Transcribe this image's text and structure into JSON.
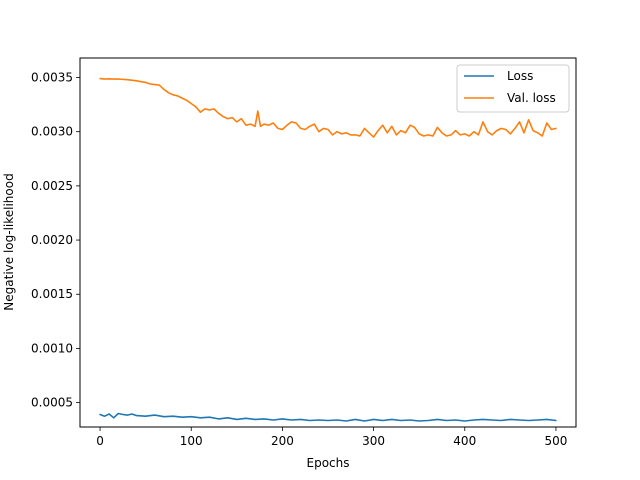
{
  "chart_data": {
    "type": "line",
    "xlabel": "Epochs",
    "ylabel": "Negative log-likelihood",
    "xlim": [
      -22,
      522
    ],
    "ylim": [
      0.000275,
      0.00368
    ],
    "xticks": [
      0,
      100,
      200,
      300,
      400,
      500
    ],
    "xtick_labels": [
      "0",
      "100",
      "200",
      "300",
      "400",
      "500"
    ],
    "yticks": [
      0.0005,
      0.001,
      0.0015,
      0.002,
      0.0025,
      0.003,
      0.0035
    ],
    "ytick_labels": [
      "0.0005",
      "0.0010",
      "0.0015",
      "0.0020",
      "0.0025",
      "0.0030",
      "0.0035"
    ],
    "grid": false,
    "legend_position": "top-right",
    "series": [
      {
        "name": "Loss",
        "color": "#1f77b4",
        "x": [
          0,
          5,
          10,
          15,
          20,
          25,
          30,
          35,
          40,
          50,
          60,
          70,
          80,
          90,
          100,
          110,
          120,
          130,
          140,
          150,
          160,
          170,
          180,
          190,
          200,
          210,
          220,
          230,
          240,
          250,
          260,
          270,
          280,
          290,
          300,
          310,
          320,
          330,
          340,
          350,
          360,
          370,
          380,
          390,
          400,
          410,
          420,
          430,
          440,
          450,
          460,
          470,
          480,
          490,
          500
        ],
        "values": [
          0.00039,
          0.000375,
          0.000395,
          0.00036,
          0.0004,
          0.00039,
          0.000385,
          0.000395,
          0.00038,
          0.000375,
          0.000385,
          0.00037,
          0.000375,
          0.000365,
          0.00037,
          0.00036,
          0.000365,
          0.00035,
          0.00036,
          0.000345,
          0.000355,
          0.000345,
          0.00035,
          0.00034,
          0.00035,
          0.00034,
          0.000345,
          0.000335,
          0.00034,
          0.000335,
          0.00034,
          0.00033,
          0.000345,
          0.00033,
          0.000345,
          0.000335,
          0.000345,
          0.000335,
          0.00034,
          0.00033,
          0.000335,
          0.000345,
          0.000335,
          0.00034,
          0.00033,
          0.00034,
          0.000345,
          0.00034,
          0.000335,
          0.000345,
          0.00034,
          0.000335,
          0.00034,
          0.000345,
          0.000335
        ]
      },
      {
        "name": "Val. loss",
        "color": "#ff7f0e",
        "x": [
          0,
          5,
          10,
          15,
          20,
          30,
          40,
          50,
          55,
          60,
          65,
          70,
          75,
          80,
          85,
          90,
          95,
          100,
          105,
          110,
          115,
          120,
          125,
          130,
          135,
          140,
          145,
          150,
          155,
          160,
          165,
          170,
          173,
          176,
          180,
          185,
          190,
          195,
          200,
          205,
          210,
          215,
          220,
          225,
          230,
          235,
          240,
          245,
          250,
          255,
          260,
          265,
          270,
          275,
          280,
          285,
          290,
          295,
          300,
          305,
          310,
          315,
          320,
          325,
          330,
          335,
          340,
          345,
          350,
          355,
          360,
          365,
          370,
          375,
          380,
          385,
          390,
          395,
          400,
          405,
          410,
          415,
          420,
          425,
          430,
          435,
          440,
          445,
          450,
          455,
          460,
          465,
          470,
          475,
          480,
          485,
          490,
          495,
          500
        ],
        "values": [
          0.00349,
          0.003485,
          0.003488,
          0.003485,
          0.003486,
          0.00348,
          0.00347,
          0.003455,
          0.00344,
          0.003435,
          0.00343,
          0.00339,
          0.00336,
          0.00334,
          0.00333,
          0.00331,
          0.00329,
          0.00326,
          0.00323,
          0.00318,
          0.00321,
          0.0032,
          0.00321,
          0.00317,
          0.00314,
          0.00312,
          0.00313,
          0.00309,
          0.00312,
          0.00306,
          0.00307,
          0.00305,
          0.00319,
          0.00305,
          0.00307,
          0.00306,
          0.00308,
          0.00303,
          0.00302,
          0.00306,
          0.00309,
          0.00308,
          0.00303,
          0.00302,
          0.00305,
          0.00307,
          0.003,
          0.00303,
          0.00302,
          0.00297,
          0.003,
          0.00298,
          0.00299,
          0.00297,
          0.00297,
          0.00296,
          0.00303,
          0.00299,
          0.00295,
          0.00301,
          0.00306,
          0.00299,
          0.00305,
          0.00297,
          0.00301,
          0.00299,
          0.00306,
          0.00304,
          0.00298,
          0.00296,
          0.00297,
          0.00296,
          0.00304,
          0.00299,
          0.00296,
          0.00297,
          0.00301,
          0.00297,
          0.00298,
          0.00296,
          0.003,
          0.00297,
          0.00309,
          0.003,
          0.00297,
          0.00301,
          0.00303,
          0.00302,
          0.00298,
          0.00303,
          0.00309,
          0.00299,
          0.00311,
          0.00301,
          0.00299,
          0.00296,
          0.00308,
          0.00302,
          0.00303
        ]
      }
    ]
  }
}
